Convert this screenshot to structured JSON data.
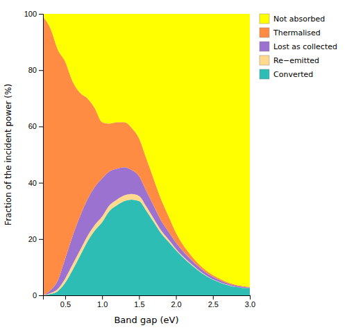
{
  "chart_data": {
    "type": "area",
    "stacked": true,
    "grid": false,
    "legend": "upper right",
    "xlabel": "Band gap (eV)",
    "ylabel": "Fraction of the incident power (%)",
    "xlim": [
      0.2,
      3.0
    ],
    "ylim": [
      0,
      100
    ],
    "xticks": [
      0.5,
      {
        "value": 1.0,
        "label": "1.0"
      },
      1.5,
      {
        "value": 2.0,
        "label": "2.0"
      },
      2.5,
      {
        "value": 3.0,
        "label": "3.0"
      }
    ],
    "yticks": [
      0,
      20,
      40,
      60,
      80,
      100
    ],
    "x": [
      0.2,
      0.3,
      0.4,
      0.5,
      0.6,
      0.7,
      0.8,
      0.9,
      1.0,
      1.1,
      1.2,
      1.3,
      1.4,
      1.5,
      1.6,
      1.7,
      1.8,
      1.9,
      2.0,
      2.2,
      2.4,
      2.6,
      2.8,
      3.0
    ],
    "series": [
      {
        "name": "Converted",
        "color": "#2DBDB4",
        "values": [
          0.0,
          0.5,
          1.5,
          4.5,
          9.0,
          14.0,
          19.0,
          23.0,
          26.0,
          30.0,
          32.0,
          33.5,
          34.0,
          33.5,
          30.0,
          26.0,
          22.0,
          19.0,
          16.0,
          11.0,
          7.0,
          4.5,
          3.0,
          2.5
        ]
      },
      {
        "name": "Re−emitted",
        "color": "#FFD98E",
        "values": [
          0.0,
          0.3,
          0.8,
          1.5,
          2.0,
          2.0,
          2.0,
          2.0,
          2.0,
          2.0,
          2.0,
          2.0,
          2.0,
          1.8,
          1.5,
          1.2,
          1.0,
          0.8,
          0.5,
          0.3,
          0.2,
          0.1,
          0.1,
          0.0
        ]
      },
      {
        "name": "Lost as collected",
        "color": "#9B72CF",
        "values": [
          0.0,
          1.0,
          3.0,
          7.0,
          10.0,
          12.0,
          13.0,
          13.5,
          13.5,
          12.0,
          11.0,
          10.0,
          8.5,
          7.0,
          5.5,
          4.5,
          3.5,
          2.8,
          2.2,
          1.5,
          1.0,
          0.7,
          0.4,
          0.3
        ]
      },
      {
        "name": "Thermalised",
        "color": "#FF8C42",
        "values": [
          99.0,
          93.0,
          82.0,
          70.0,
          55.0,
          44.0,
          36.0,
          28.0,
          20.0,
          17.0,
          16.5,
          16.0,
          15.0,
          13.5,
          11.5,
          9.5,
          7.5,
          5.5,
          3.5,
          1.5,
          0.8,
          0.5,
          0.3,
          0.2
        ]
      },
      {
        "name": "Not absorbed",
        "color": "#FFFF00",
        "values": [
          1.0,
          5.2,
          12.7,
          17.0,
          24.0,
          28.0,
          30.0,
          33.5,
          38.5,
          39.0,
          38.5,
          38.5,
          40.5,
          44.2,
          51.5,
          58.8,
          66.0,
          71.9,
          77.8,
          85.7,
          91.0,
          94.2,
          96.2,
          97.0
        ]
      }
    ]
  }
}
